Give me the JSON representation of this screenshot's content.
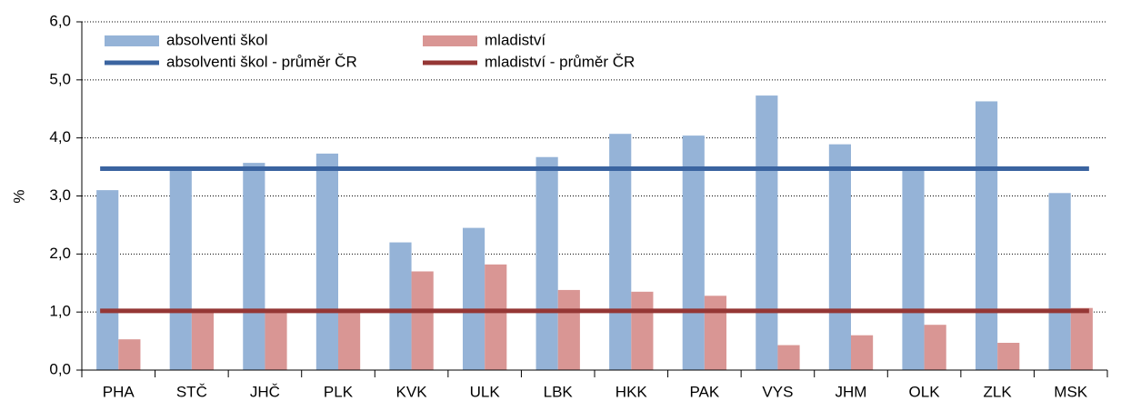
{
  "chart_data": {
    "type": "bar",
    "y_label": "%",
    "categories": [
      "PHA",
      "STČ",
      "JHČ",
      "PLK",
      "KVK",
      "ULK",
      "LBK",
      "HKK",
      "PAK",
      "VYS",
      "JHM",
      "OLK",
      "ZLK",
      "MSK"
    ],
    "series": [
      {
        "name": "absolventi škol",
        "color": "#95b3d7",
        "values": [
          3.1,
          3.5,
          3.57,
          3.73,
          2.2,
          2.45,
          3.67,
          4.07,
          4.04,
          4.73,
          3.89,
          3.5,
          4.63,
          3.05
        ]
      },
      {
        "name": "mladiství",
        "color": "#d99694",
        "values": [
          0.53,
          1.05,
          1.05,
          1.05,
          1.7,
          1.82,
          1.38,
          1.35,
          1.28,
          0.43,
          0.6,
          0.78,
          0.47,
          1.07
        ]
      }
    ],
    "reference_lines": [
      {
        "name": "absolventi škol - průměr ČR",
        "color": "#3b64a0",
        "value": 3.47
      },
      {
        "name": "mladiství - průměr ČR",
        "color": "#953735",
        "value": 1.02
      }
    ],
    "ylim": [
      0,
      6
    ],
    "yticks": [
      {
        "value": 0,
        "label": "0,0"
      },
      {
        "value": 1,
        "label": "1,0"
      },
      {
        "value": 2,
        "label": "2,0"
      },
      {
        "value": 3,
        "label": "3,0"
      },
      {
        "value": 4,
        "label": "4,0"
      },
      {
        "value": 5,
        "label": "5,0"
      },
      {
        "value": 6,
        "label": "6,0"
      }
    ],
    "grid": true
  }
}
